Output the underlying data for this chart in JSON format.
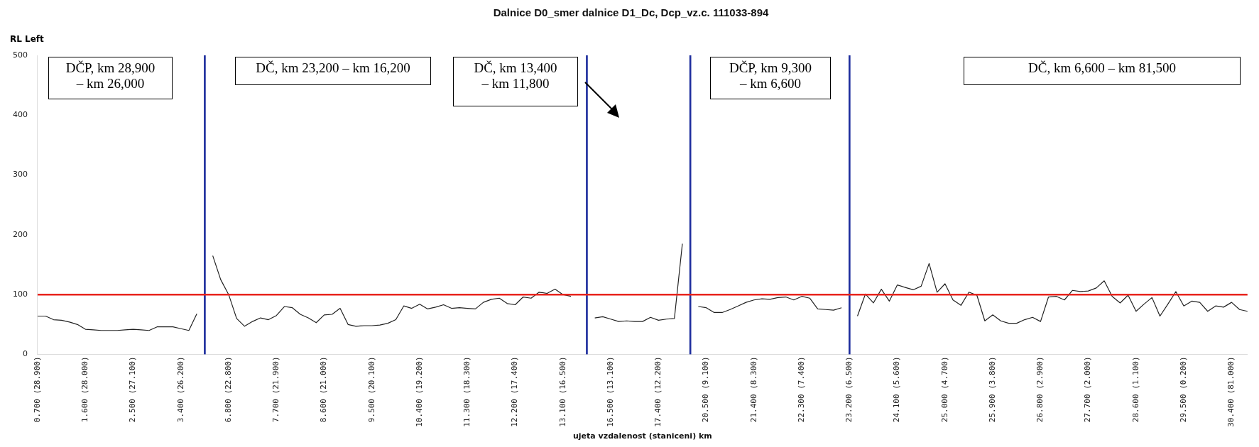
{
  "chart_data": {
    "type": "line",
    "title": "Dalnice D0_smer dalnice D1_Dc, Dcp_vz.c. 111033-894",
    "xlabel": "ujeta vzdalenost (staniceni) km",
    "ylabel": "RL Left",
    "categories": [
      "0.700 (28.900)",
      null,
      null,
      null,
      null,
      null,
      "1.600 (28.000)",
      null,
      null,
      null,
      null,
      null,
      "2.500 (27.100)",
      null,
      null,
      null,
      null,
      null,
      "3.400 (26.200)",
      null,
      null,
      null,
      null,
      null,
      "6.800 (22.800)",
      null,
      null,
      null,
      null,
      null,
      "7.700 (21.900)",
      null,
      null,
      null,
      null,
      null,
      "8.600 (21.000)",
      null,
      null,
      null,
      null,
      null,
      "9.500 (20.100)",
      null,
      null,
      null,
      null,
      null,
      "10.400 (19.200)",
      null,
      null,
      null,
      null,
      null,
      "11.300 (18.300)",
      null,
      null,
      null,
      null,
      null,
      "12.200 (17.400)",
      null,
      null,
      null,
      null,
      null,
      "13.100 (16.500)",
      null,
      null,
      null,
      null,
      null,
      "16.500 (13.100)",
      null,
      null,
      null,
      null,
      null,
      "17.400 (12.200)",
      null,
      null,
      null,
      null,
      null,
      "20.500 (9.100)",
      null,
      null,
      null,
      null,
      null,
      "21.400 (8.300)",
      null,
      null,
      null,
      null,
      null,
      "22.300 (7.400)",
      null,
      null,
      null,
      null,
      null,
      "23.200 (6.500)",
      null,
      null,
      null,
      null,
      null,
      "24.100 (5.600)",
      null,
      null,
      null,
      null,
      null,
      "25.000 (4.700)",
      null,
      null,
      null,
      null,
      null,
      "25.900 (3.800)",
      null,
      null,
      null,
      null,
      null,
      "26.800 (2.900)",
      null,
      null,
      null,
      null,
      null,
      "27.700 (2.000)",
      null,
      null,
      null,
      null,
      null,
      "28.600 (1.100)",
      null,
      null,
      null,
      null,
      null,
      "29.500 (0.200)",
      null,
      null,
      null,
      null,
      null,
      "30.400 (81.000)",
      null,
      null
    ],
    "series": [
      {
        "color": "#222222",
        "values": [
          64,
          64,
          58,
          57,
          54,
          50,
          42,
          41,
          40,
          40,
          40,
          41,
          42,
          41,
          40,
          46,
          46,
          46,
          43,
          40,
          68,
          null,
          165,
          125,
          100,
          60,
          47,
          55,
          61,
          58,
          65,
          80,
          78,
          67,
          61,
          53,
          66,
          67,
          77,
          50,
          47,
          48,
          48,
          49,
          52,
          58,
          81,
          77,
          84,
          76,
          79,
          83,
          77,
          78,
          77,
          76,
          87,
          92,
          94,
          85,
          83,
          96,
          94,
          104,
          102,
          109,
          100,
          97,
          null,
          null,
          61,
          63,
          59,
          55,
          56,
          55,
          55,
          62,
          57,
          59,
          60,
          185,
          null,
          80,
          78,
          70,
          70,
          75,
          81,
          87,
          91,
          93,
          92,
          95,
          96,
          91,
          97,
          94,
          76,
          75,
          74,
          78,
          null,
          64,
          101,
          86,
          109,
          89,
          116,
          112,
          108,
          114,
          152,
          104,
          118,
          91,
          82,
          104,
          99,
          56,
          66,
          56,
          52,
          52,
          58,
          62,
          55,
          96,
          97,
          91,
          107,
          105,
          106,
          111,
          123,
          97,
          86,
          99,
          72,
          84,
          95,
          64,
          84,
          105,
          81,
          89,
          87,
          72,
          81,
          79,
          87,
          75,
          72
        ]
      },
      {
        "type": "bar",
        "color": "#1f2f9e",
        "values": [
          null,
          null,
          null,
          null,
          null,
          null,
          null,
          null,
          null,
          null,
          null,
          null,
          null,
          null,
          null,
          null,
          null,
          null,
          null,
          null,
          null,
          500,
          null,
          null,
          null,
          null,
          null,
          null,
          null,
          null,
          null,
          null,
          null,
          null,
          null,
          null,
          null,
          null,
          null,
          null,
          null,
          null,
          null,
          null,
          null,
          null,
          null,
          null,
          null,
          null,
          null,
          null,
          null,
          null,
          null,
          null,
          null,
          null,
          null,
          null,
          null,
          null,
          null,
          null,
          null,
          null,
          null,
          null,
          null,
          500,
          null,
          null,
          null,
          null,
          null,
          null,
          null,
          null,
          null,
          null,
          null,
          null,
          500,
          null,
          null,
          null,
          null,
          null,
          null,
          null,
          null,
          null,
          null,
          null,
          null,
          null,
          null,
          null,
          null,
          null,
          null,
          null,
          500,
          null,
          null,
          null,
          null,
          null,
          null,
          null,
          null,
          null,
          null,
          null,
          null,
          null,
          null,
          null,
          null,
          null,
          null,
          null,
          null,
          null,
          null,
          null,
          null,
          null,
          null,
          null,
          null,
          null,
          null,
          null,
          null,
          null,
          null,
          null,
          null,
          null,
          null,
          null,
          null,
          null,
          null,
          null,
          null,
          null,
          null,
          null,
          null,
          null,
          null
        ]
      }
    ],
    "ylim": [
      0,
      500
    ],
    "yticks": [
      0,
      100,
      200,
      300,
      400,
      500
    ],
    "ref_lines": [
      {
        "axis": "y",
        "value": 100,
        "color": "#e8231c"
      }
    ],
    "annotations": [
      "DČP, km 28,900 – km 26,000",
      "DČ, km 23,200 – km 16,200",
      "DČ, km 13,400 – km 11,800",
      "DČP, km 9,300 – km 6,600",
      "DČ, km 6,600 – km 81,500"
    ]
  }
}
